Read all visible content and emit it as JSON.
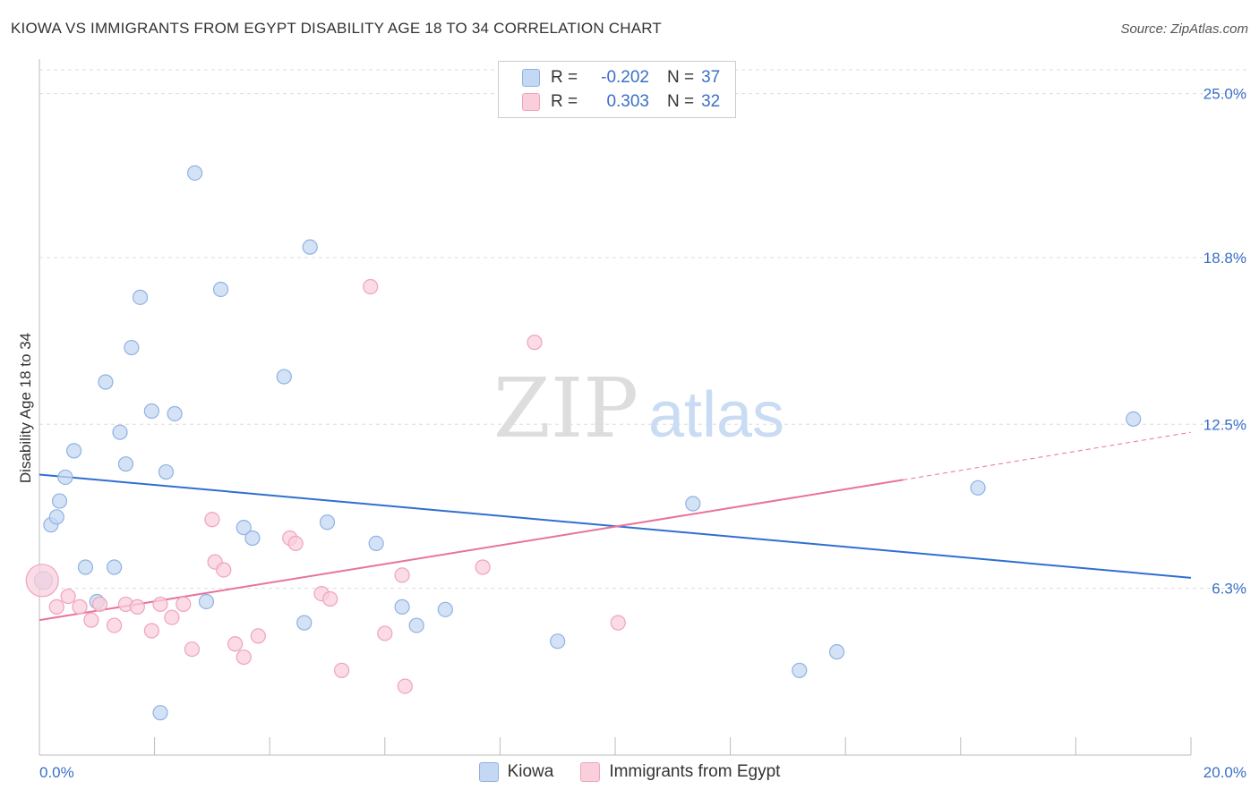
{
  "title": "KIOWA VS IMMIGRANTS FROM EGYPT DISABILITY AGE 18 TO 34 CORRELATION CHART",
  "source": "Source: ZipAtlas.com",
  "watermark": {
    "zip": "ZIP",
    "atlas": "atlas"
  },
  "legend": {
    "rows": [
      {
        "r_label": "R =",
        "r_value": "-0.202",
        "n_label": "N =",
        "n_value": "37"
      },
      {
        "r_label": "R =",
        "r_value": "0.303",
        "n_label": "N =",
        "n_value": "32"
      }
    ]
  },
  "bottom_legend": [
    "Kiowa",
    "Immigrants from Egypt"
  ],
  "colors": {
    "kiowa_fill": "#c5d8f3",
    "kiowa_stroke": "#8fb2e3",
    "kiowa_line": "#2f6fd0",
    "egypt_fill": "#f9cfdc",
    "egypt_stroke": "#f0a3bb",
    "egypt_line": "#e8739a",
    "tick_label": "#3a6fc8",
    "grid": "#dddddd"
  },
  "chart_data": {
    "type": "scatter",
    "title": "KIOWA VS IMMIGRANTS FROM EGYPT DISABILITY AGE 18 TO 34 CORRELATION CHART",
    "xlabel": "",
    "ylabel": "Disability Age 18 to 34",
    "xlim": [
      0,
      20
    ],
    "ylim": [
      0,
      25.9
    ],
    "x_tick_labels": [
      "0.0%",
      "20.0%"
    ],
    "y_ticks": [
      6.3,
      12.5,
      18.8,
      25.0
    ],
    "y_tick_labels": [
      "6.3%",
      "12.5%",
      "18.8%",
      "25.0%"
    ],
    "grid": true,
    "series": [
      {
        "name": "Kiowa",
        "points": [
          [
            0.07,
            6.6
          ],
          [
            0.2,
            8.7
          ],
          [
            0.3,
            9.0
          ],
          [
            0.35,
            9.6
          ],
          [
            0.45,
            10.5
          ],
          [
            0.6,
            11.5
          ],
          [
            0.8,
            7.1
          ],
          [
            1.15,
            14.1
          ],
          [
            1.0,
            5.8
          ],
          [
            1.3,
            7.1
          ],
          [
            1.4,
            12.2
          ],
          [
            1.5,
            11.0
          ],
          [
            1.6,
            15.4
          ],
          [
            1.75,
            17.3
          ],
          [
            1.95,
            13.0
          ],
          [
            2.1,
            1.6
          ],
          [
            2.2,
            10.7
          ],
          [
            2.35,
            12.9
          ],
          [
            2.7,
            22.0
          ],
          [
            2.9,
            5.8
          ],
          [
            3.15,
            17.6
          ],
          [
            3.55,
            8.6
          ],
          [
            3.7,
            8.2
          ],
          [
            4.25,
            14.3
          ],
          [
            4.6,
            5.0
          ],
          [
            4.7,
            19.2
          ],
          [
            5.0,
            8.8
          ],
          [
            5.85,
            8.0
          ],
          [
            6.3,
            5.6
          ],
          [
            6.55,
            4.9
          ],
          [
            7.05,
            5.5
          ],
          [
            9.0,
            4.3
          ],
          [
            11.35,
            9.5
          ],
          [
            13.2,
            3.2
          ],
          [
            13.85,
            3.9
          ],
          [
            16.3,
            10.1
          ],
          [
            19.0,
            12.7
          ]
        ]
      },
      {
        "name": "Immigrants from Egypt",
        "points": [
          [
            0.05,
            6.6
          ],
          [
            0.3,
            5.6
          ],
          [
            0.5,
            6.0
          ],
          [
            0.7,
            5.6
          ],
          [
            0.9,
            5.1
          ],
          [
            1.05,
            5.7
          ],
          [
            1.3,
            4.9
          ],
          [
            1.5,
            5.7
          ],
          [
            1.7,
            5.6
          ],
          [
            1.95,
            4.7
          ],
          [
            2.1,
            5.7
          ],
          [
            2.3,
            5.2
          ],
          [
            2.5,
            5.7
          ],
          [
            2.65,
            4.0
          ],
          [
            3.0,
            8.9
          ],
          [
            3.05,
            7.3
          ],
          [
            3.2,
            7.0
          ],
          [
            3.4,
            4.2
          ],
          [
            3.55,
            3.7
          ],
          [
            3.8,
            4.5
          ],
          [
            4.35,
            8.2
          ],
          [
            4.45,
            8.0
          ],
          [
            4.9,
            6.1
          ],
          [
            5.05,
            5.9
          ],
          [
            5.25,
            3.2
          ],
          [
            5.75,
            17.7
          ],
          [
            6.0,
            4.6
          ],
          [
            6.3,
            6.8
          ],
          [
            6.35,
            2.6
          ],
          [
            7.7,
            7.1
          ],
          [
            8.6,
            15.6
          ],
          [
            10.05,
            5.0
          ]
        ]
      }
    ],
    "trend_lines": [
      {
        "series": "Kiowa",
        "x": [
          0,
          20
        ],
        "y": [
          10.6,
          6.7
        ]
      },
      {
        "series": "Immigrants from Egypt",
        "x": [
          0,
          15
        ],
        "y": [
          5.1,
          10.4
        ],
        "dashed_extension": {
          "x": [
            15,
            20
          ],
          "y": [
            10.4,
            12.2
          ]
        }
      }
    ]
  }
}
